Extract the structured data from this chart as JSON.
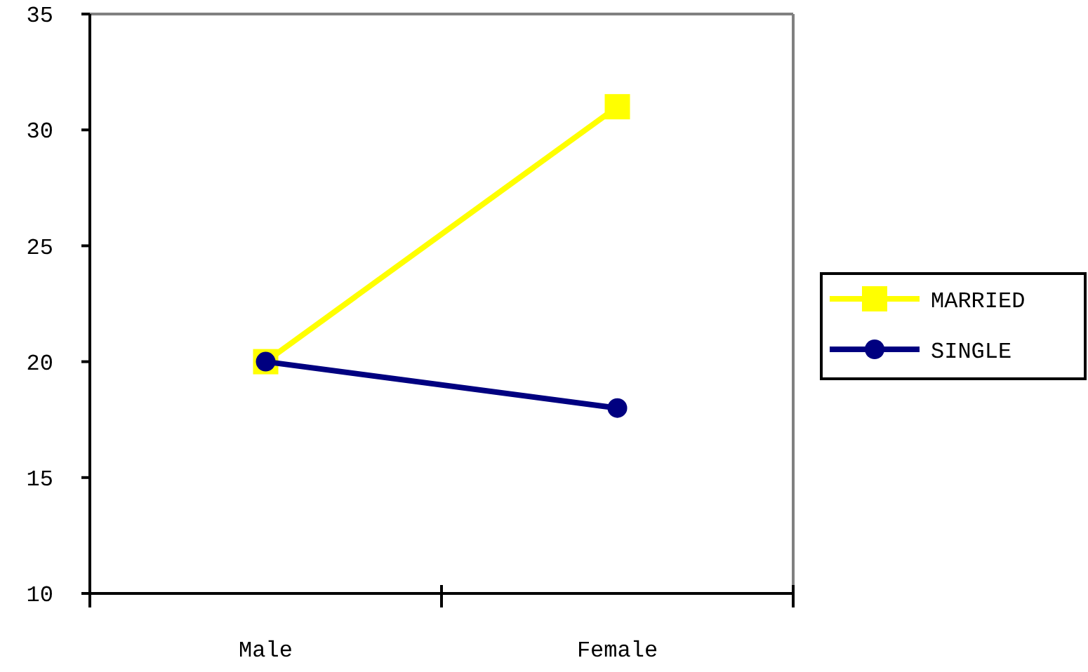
{
  "chart_data": {
    "type": "line",
    "categories": [
      "Male",
      "Female"
    ],
    "series": [
      {
        "name": "MARRIED",
        "color": "#ffff00",
        "values": [
          20,
          31
        ],
        "marker": "square"
      },
      {
        "name": "SINGLE",
        "color": "#000080",
        "values": [
          20,
          18
        ],
        "marker": "circle"
      }
    ],
    "ylim": [
      10,
      35
    ],
    "yticks": [
      10,
      15,
      20,
      25,
      30,
      35
    ],
    "grid": false,
    "legend": "right",
    "line_style": "solid"
  }
}
